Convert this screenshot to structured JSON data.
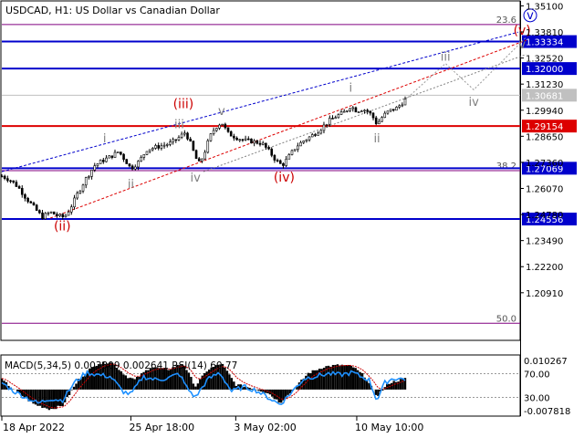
{
  "header": {
    "symbol_line": "USDCAD, H1:  US Dollar vs Canadian Dollar"
  },
  "colors": {
    "candle": "#000000",
    "blue_level": "#0000cc",
    "red_level": "#dd0000",
    "fib_level": "#800080",
    "wave_red": "#cc0000",
    "wave_gray": "#808080",
    "channel_blue": "#0000cc",
    "channel_red": "#dd0000",
    "macd_signal": "#cc0000",
    "rsi": "#1e90ff",
    "current_price_bg": "#c0c0c0",
    "label_bg": "#0000cc"
  },
  "chart_data": [
    {
      "type": "candlestick",
      "title": "USDCAD, H1:  US Dollar vs Canadian Dollar",
      "ylim": [
        1.186,
        1.353
      ],
      "y_ticks": [
        "1.35100",
        "1.33810",
        "1.32520",
        "1.31230",
        "1.29940",
        "1.28650",
        "1.27360",
        "1.26070",
        "1.24780",
        "1.23490",
        "1.22200",
        "1.20910"
      ],
      "x_tick_labels": [
        "18 Apr 2022",
        "25 Apr 18:00",
        "3 May 02:00",
        "10 May 10:00"
      ],
      "x_tick_pos": [
        0.0,
        0.32,
        0.58,
        0.88
      ],
      "price_path": [
        [
          0.0,
          1.2668
        ],
        [
          0.02,
          1.265
        ],
        [
          0.04,
          1.2615
        ],
        [
          0.06,
          1.256
        ],
        [
          0.08,
          1.2512
        ],
        [
          0.1,
          1.2465
        ],
        [
          0.12,
          1.249
        ],
        [
          0.14,
          1.247
        ],
        [
          0.155,
          1.2465
        ],
        [
          0.17,
          1.251
        ],
        [
          0.19,
          1.259
        ],
        [
          0.21,
          1.266
        ],
        [
          0.23,
          1.272
        ],
        [
          0.25,
          1.2745
        ],
        [
          0.27,
          1.2765
        ],
        [
          0.29,
          1.279
        ],
        [
          0.31,
          1.2735
        ],
        [
          0.32,
          1.2705
        ],
        [
          0.34,
          1.274
        ],
        [
          0.36,
          1.28
        ],
        [
          0.38,
          1.281
        ],
        [
          0.4,
          1.282
        ],
        [
          0.42,
          1.2832
        ],
        [
          0.44,
          1.286
        ],
        [
          0.455,
          1.2885
        ],
        [
          0.47,
          1.282
        ],
        [
          0.48,
          1.276
        ],
        [
          0.49,
          1.273
        ],
        [
          0.5,
          1.277
        ],
        [
          0.51,
          1.283
        ],
        [
          0.52,
          1.288
        ],
        [
          0.53,
          1.291
        ],
        [
          0.545,
          1.2935
        ],
        [
          0.56,
          1.288
        ],
        [
          0.58,
          1.286
        ],
        [
          0.6,
          1.2845
        ],
        [
          0.62,
          1.284
        ],
        [
          0.645,
          1.283
        ],
        [
          0.665,
          1.2785
        ],
        [
          0.68,
          1.2745
        ],
        [
          0.695,
          1.272
        ],
        [
          0.71,
          1.276
        ],
        [
          0.73,
          1.2815
        ],
        [
          0.75,
          1.2845
        ],
        [
          0.77,
          1.287
        ],
        [
          0.79,
          1.29
        ],
        [
          0.81,
          1.294
        ],
        [
          0.83,
          1.2965
        ],
        [
          0.85,
          1.2985
        ],
        [
          0.865,
          1.3015
        ],
        [
          0.88,
          1.299
        ],
        [
          0.895,
          1.3
        ],
        [
          0.91,
          1.2985
        ],
        [
          0.92,
          1.296
        ],
        [
          0.93,
          1.2925
        ],
        [
          0.945,
          1.2965
        ],
        [
          0.96,
          1.299
        ],
        [
          0.98,
          1.3005
        ],
        [
          1.0,
          1.3045
        ]
      ],
      "horizontal_levels": [
        {
          "price": 1.33334,
          "label": "1.33334",
          "role": "resistance",
          "color": "blue"
        },
        {
          "price": 1.32,
          "label": "1.32000",
          "role": "resistance",
          "color": "blue"
        },
        {
          "price": 1.30681,
          "label": "1.30681",
          "role": "current",
          "color": "gray"
        },
        {
          "price": 1.29154,
          "label": "1.29154",
          "role": "pivot",
          "color": "red"
        },
        {
          "price": 1.27069,
          "label": "1.27069",
          "role": "support",
          "color": "blue"
        },
        {
          "price": 1.24556,
          "label": "1.24556",
          "role": "support",
          "color": "blue"
        }
      ],
      "fib_levels": [
        {
          "price": 1.3418,
          "label": "23.6"
        },
        {
          "price": 1.2695,
          "label": "38.2"
        },
        {
          "price": 1.194,
          "label": "50.0"
        }
      ],
      "wave_labels": [
        {
          "text": "(ii)",
          "x": 0.15,
          "y": 1.24,
          "color": "red"
        },
        {
          "text": "(iii)",
          "x": 0.45,
          "y": 1.3005,
          "color": "red"
        },
        {
          "text": "(iv)",
          "x": 0.7,
          "y": 1.264,
          "color": "red"
        },
        {
          "text": "(v)",
          "x": 1.29,
          "y": 1.3367,
          "color": "red"
        },
        {
          "text": "i",
          "x": 0.255,
          "y": 1.2835,
          "color": "gray"
        },
        {
          "text": "ii",
          "x": 0.32,
          "y": 1.261,
          "color": "gray"
        },
        {
          "text": "iii",
          "x": 0.44,
          "y": 1.2905,
          "color": "gray"
        },
        {
          "text": "iv",
          "x": 0.48,
          "y": 1.264,
          "color": "gray"
        },
        {
          "text": "v",
          "x": 0.545,
          "y": 1.297,
          "color": "gray"
        },
        {
          "text": "i",
          "x": 0.865,
          "y": 1.3085,
          "color": "gray"
        },
        {
          "text": "ii",
          "x": 0.93,
          "y": 1.2835,
          "color": "gray"
        },
        {
          "text": "iii",
          "x": 1.1,
          "y": 1.324,
          "color": "gray"
        },
        {
          "text": "iv",
          "x": 1.17,
          "y": 1.3015,
          "color": "gray"
        },
        {
          "text": "v",
          "x": 1.29,
          "y": 1.33,
          "color": "gray"
        },
        {
          "text": "v",
          "x": 1.31,
          "y": 1.3445,
          "color": "blue"
        }
      ],
      "channel_lines": [
        {
          "from": [
            0.0,
            1.269
          ],
          "to": [
            1.28,
            1.338
          ],
          "style": "dashed",
          "color": "blue"
        },
        {
          "from": [
            0.12,
            1.246
          ],
          "to": [
            1.3,
            1.334
          ],
          "style": "dashed",
          "color": "red"
        },
        {
          "from": [
            0.5,
            1.269
          ],
          "to": [
            1.3,
            1.327
          ],
          "style": "dashed",
          "color": "gray"
        }
      ],
      "forecast_path": [
        [
          1.0,
          1.3045
        ],
        [
          1.1,
          1.3225
        ],
        [
          1.17,
          1.3095
        ],
        [
          1.3,
          1.3355
        ]
      ]
    },
    {
      "type": "histogram",
      "title": "MACD(5,34,5) 0.003309 0.002641 RSI(14) 60.77",
      "indicator": "MACD(5,34,5) 0.003309 0.002641 RSI(14) 60.77",
      "right_axis": {
        "max_label": "0.010267",
        "min_label": "-0.007818"
      },
      "rsi_levels": [
        {
          "value": 70,
          "label": "70.00"
        },
        {
          "value": 30,
          "label": "30.00"
        }
      ],
      "macd_path": [
        [
          0.0,
          0.003
        ],
        [
          0.04,
          -0.001
        ],
        [
          0.08,
          -0.0045
        ],
        [
          0.12,
          -0.006
        ],
        [
          0.15,
          -0.005
        ],
        [
          0.19,
          0.003
        ],
        [
          0.23,
          0.0075
        ],
        [
          0.27,
          0.0085
        ],
        [
          0.31,
          0.004
        ],
        [
          0.33,
          0.003
        ],
        [
          0.37,
          0.007
        ],
        [
          0.41,
          0.006
        ],
        [
          0.45,
          0.008
        ],
        [
          0.48,
          0.001
        ],
        [
          0.51,
          0.006
        ],
        [
          0.545,
          0.008
        ],
        [
          0.58,
          0.0015
        ],
        [
          0.62,
          0.0005
        ],
        [
          0.66,
          -0.001
        ],
        [
          0.69,
          -0.004
        ],
        [
          0.72,
          -0.0005
        ],
        [
          0.76,
          0.005
        ],
        [
          0.8,
          0.007
        ],
        [
          0.84,
          0.0075
        ],
        [
          0.87,
          0.007
        ],
        [
          0.9,
          0.004
        ],
        [
          0.93,
          -0.002
        ],
        [
          0.96,
          0.002
        ],
        [
          1.0,
          0.0033
        ]
      ],
      "rsi_path": [
        [
          0.0,
          55
        ],
        [
          0.03,
          40
        ],
        [
          0.06,
          30
        ],
        [
          0.09,
          20
        ],
        [
          0.12,
          28
        ],
        [
          0.15,
          25
        ],
        [
          0.18,
          55
        ],
        [
          0.21,
          72
        ],
        [
          0.24,
          68
        ],
        [
          0.27,
          65
        ],
        [
          0.3,
          40
        ],
        [
          0.32,
          35
        ],
        [
          0.35,
          65
        ],
        [
          0.38,
          60
        ],
        [
          0.41,
          62
        ],
        [
          0.44,
          70
        ],
        [
          0.46,
          45
        ],
        [
          0.48,
          30
        ],
        [
          0.51,
          60
        ],
        [
          0.54,
          72
        ],
        [
          0.57,
          40
        ],
        [
          0.6,
          48
        ],
        [
          0.63,
          42
        ],
        [
          0.66,
          30
        ],
        [
          0.69,
          18
        ],
        [
          0.72,
          40
        ],
        [
          0.75,
          62
        ],
        [
          0.78,
          66
        ],
        [
          0.81,
          70
        ],
        [
          0.84,
          68
        ],
        [
          0.87,
          72
        ],
        [
          0.89,
          65
        ],
        [
          0.91,
          60
        ],
        [
          0.93,
          25
        ],
        [
          0.95,
          55
        ],
        [
          0.97,
          62
        ],
        [
          1.0,
          61
        ]
      ]
    }
  ]
}
